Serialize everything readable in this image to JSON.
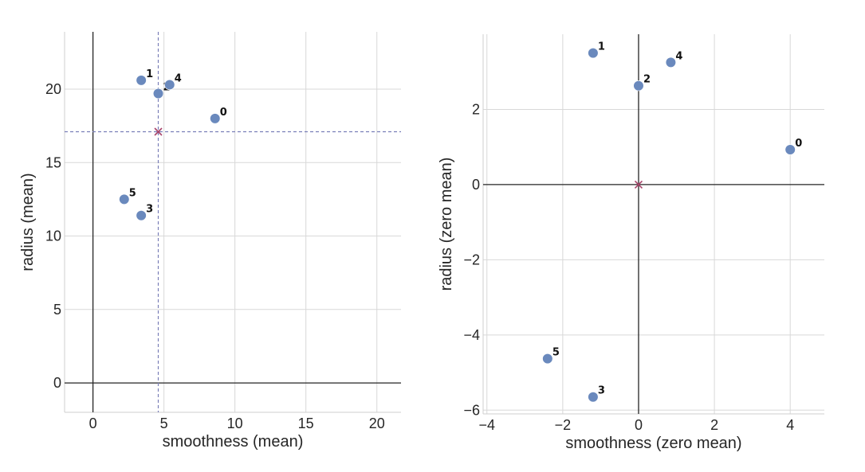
{
  "chart_data": [
    {
      "type": "scatter",
      "title": "",
      "xlabel": "smoothness (mean)",
      "ylabel": "radius (mean)",
      "xlim": [
        -2,
        21.7
      ],
      "ylim": [
        -2,
        23.9
      ],
      "xticks": [
        0,
        5,
        10,
        15,
        20
      ],
      "yticks": [
        0,
        5,
        10,
        15,
        20
      ],
      "grid": true,
      "zero_lines": true,
      "points": [
        {
          "label": "0",
          "x": 8.6,
          "y": 18.0
        },
        {
          "label": "1",
          "x": 3.4,
          "y": 20.6
        },
        {
          "label": "2",
          "x": 4.6,
          "y": 19.7
        },
        {
          "label": "3",
          "x": 3.4,
          "y": 11.4
        },
        {
          "label": "4",
          "x": 5.4,
          "y": 20.3
        },
        {
          "label": "5",
          "x": 2.2,
          "y": 12.5
        }
      ],
      "mean": {
        "x": 4.6,
        "y": 17.1
      },
      "mean_guides": true,
      "colors": {
        "point": "#6a89bd",
        "mean": "#a8446a",
        "guide": "#7a7fb8",
        "axis": "#262626",
        "grid": "#d8d8d8"
      }
    },
    {
      "type": "scatter",
      "title": "",
      "xlabel": "smoothness (zero mean)",
      "ylabel": "radius (zero mean)",
      "xlim": [
        -4.1,
        4.9
      ],
      "ylim": [
        -6.1,
        4.0
      ],
      "xticks": [
        -4,
        -2,
        0,
        2,
        4
      ],
      "yticks": [
        -6,
        -4,
        -2,
        0,
        2
      ],
      "grid": true,
      "zero_lines": true,
      "points": [
        {
          "label": "0",
          "x": 4.0,
          "y": 0.93
        },
        {
          "label": "1",
          "x": -1.2,
          "y": 3.5
        },
        {
          "label": "2",
          "x": 0.0,
          "y": 2.63
        },
        {
          "label": "3",
          "x": -1.2,
          "y": -5.65
        },
        {
          "label": "4",
          "x": 0.85,
          "y": 3.25
        },
        {
          "label": "5",
          "x": -2.4,
          "y": -4.63
        }
      ],
      "mean": {
        "x": 0,
        "y": 0
      },
      "mean_guides": false,
      "colors": {
        "point": "#6a89bd",
        "mean": "#a8446a",
        "guide": "#7a7fb8",
        "axis": "#262626",
        "grid": "#d8d8d8"
      }
    }
  ]
}
